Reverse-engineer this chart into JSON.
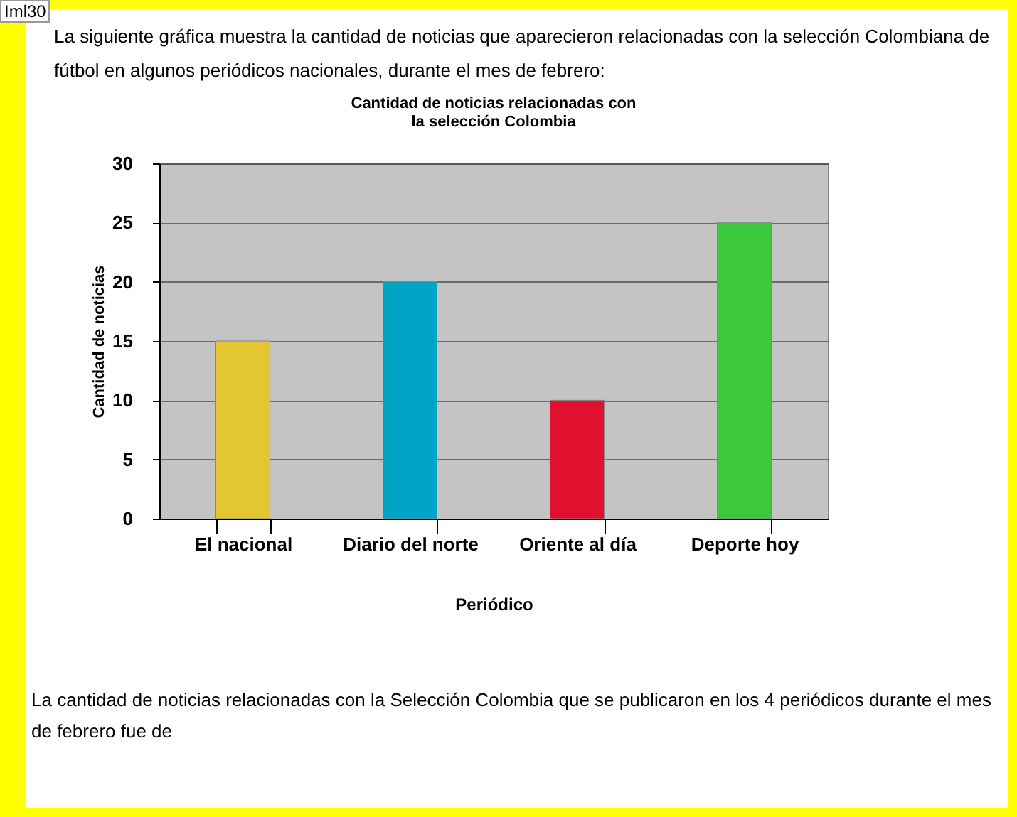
{
  "chart_data": {
    "type": "bar",
    "title": [
      "Cantidad de noticias relacionadas con",
      "la selección Colombia"
    ],
    "xlabel": "Periódico",
    "ylabel": "Cantidad de noticias",
    "categories": [
      "El nacional",
      "Diario del norte",
      "Oriente al día",
      "Deporte hoy"
    ],
    "values": [
      15,
      20,
      10,
      25
    ],
    "colors": [
      "#e3c631",
      "#00a5c6",
      "#e0102e",
      "#3cc83c"
    ],
    "ylim": [
      0,
      30
    ],
    "yticks": [
      0,
      5,
      10,
      15,
      20,
      25,
      30
    ],
    "grid": "y",
    "annotations": [
      "Iml30",
      "La siguiente gráfica muestra la cantidad de noticias que aparecieron relacionadas con la selección Colombiana de fútbol en algunos periódicos nacionales, durante el mes de febrero:",
      "La cantidad de noticias relacionadas con la Selección Colombia que se publicaron en los 4 periódicos durante el mes de febrero fue de"
    ]
  }
}
